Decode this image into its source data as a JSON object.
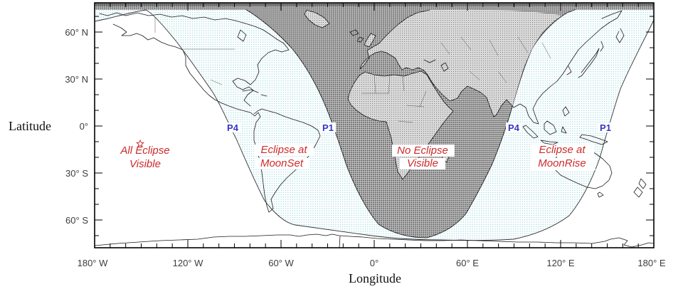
{
  "figure": {
    "axes": {
      "y_title": "Latitude",
      "x_title": "Longitude",
      "lat_tick_labels": [
        "60° N",
        "30° N",
        "0°",
        "30° S",
        "60° S"
      ],
      "lon_tick_labels": [
        "180° W",
        "120° W",
        "60° W",
        "0°",
        "60° E",
        "120° E",
        "180° E"
      ]
    },
    "region_labels": {
      "all_visible": {
        "line1": "All Eclipse",
        "line2": "Visible"
      },
      "moonset": {
        "line1": "Eclipse at",
        "line2": "MoonSet"
      },
      "none": {
        "line1": "No Eclipse",
        "line2": "Visible"
      },
      "moonrise": {
        "line1": "Eclipse at",
        "line2": "MoonRise"
      }
    },
    "contact_curve_labels": {
      "p4_west": "P4",
      "p1_west": "P1",
      "p4_east": "P4",
      "p1_east": "P1"
    },
    "colors": {
      "label_red": "#cc2b2b",
      "label_blue": "#3535c8",
      "penumbra_stipple": "#7fccd4",
      "umbra_gray": "#9a9a9a"
    }
  },
  "chart_data": {
    "type": "map",
    "title": "Lunar eclipse visibility map",
    "x_axis": {
      "label": "Longitude",
      "ticks": [
        "180° W",
        "120° W",
        "60° W",
        "0°",
        "60° E",
        "120° E",
        "180° E"
      ]
    },
    "y_axis": {
      "label": "Latitude",
      "ticks": [
        "60° N",
        "30° N",
        "0°",
        "30° S",
        "60° S"
      ]
    },
    "regions": [
      {
        "name": "All Eclipse Visible",
        "shading": "white",
        "location_on_map": "far west and far east (Pacific)"
      },
      {
        "name": "Eclipse at MoonSet",
        "shading": "light cyan stipple",
        "location_on_map": "Americas"
      },
      {
        "name": "No Eclipse Visible",
        "shading": "dark gray stipple",
        "location_on_map": "Europe, Africa, central Asia"
      },
      {
        "name": "Eclipse at MoonRise",
        "shading": "light cyan stipple",
        "location_on_map": "east Asia, Australia"
      }
    ],
    "contact_curves": [
      {
        "label": "P4",
        "approx_lon_at_equator_deg": -91
      },
      {
        "label": "P1",
        "approx_lon_at_equator_deg": -30
      },
      {
        "label": "P4",
        "approx_lon_at_equator_deg": 90
      },
      {
        "label": "P1",
        "approx_lon_at_equator_deg": 149
      }
    ]
  }
}
